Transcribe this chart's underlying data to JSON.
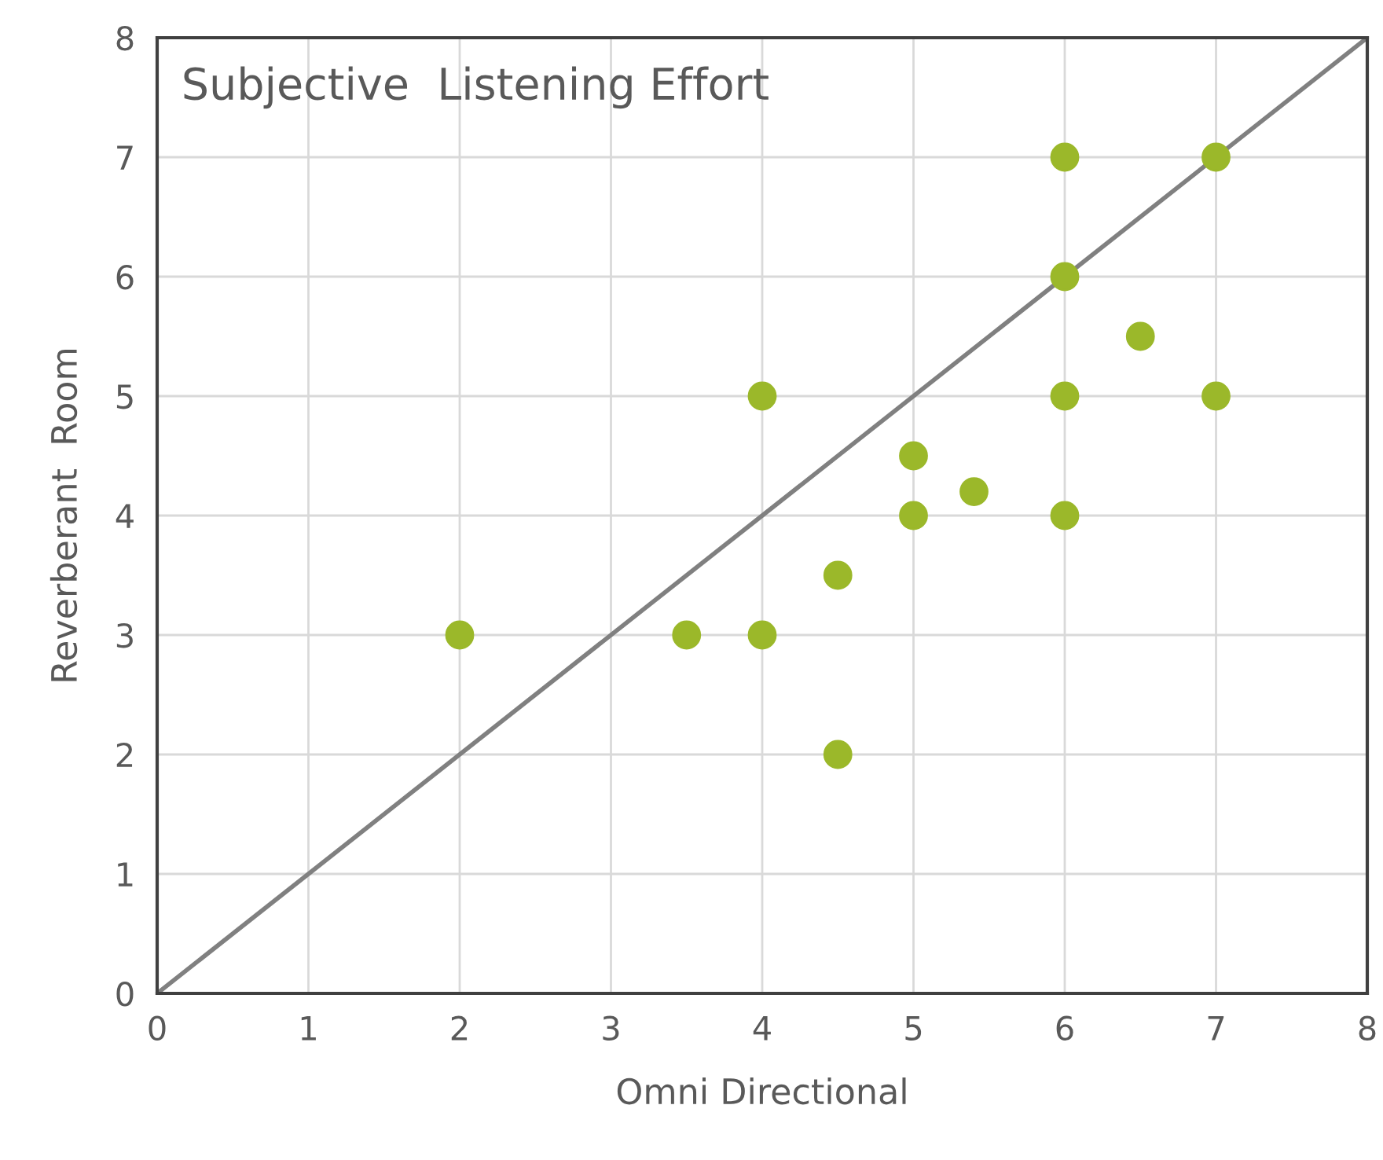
{
  "chart_data": {
    "type": "scatter",
    "title": "Subjective  Listening Effort",
    "xlabel": "Omni Directional",
    "ylabel": "Reverberant  Room",
    "xlim": [
      0,
      8
    ],
    "ylim": [
      0,
      8
    ],
    "xticks": [
      0,
      1,
      2,
      3,
      4,
      5,
      6,
      7,
      8
    ],
    "yticks": [
      0,
      1,
      2,
      3,
      4,
      5,
      6,
      7,
      8
    ],
    "grid": true,
    "marker": "circle",
    "series": [
      {
        "color": "#9bb82a",
        "x": [
          2,
          3.5,
          4,
          4,
          4.5,
          4.5,
          5,
          5,
          5.4,
          6,
          6,
          6,
          6,
          6.5,
          7,
          7
        ],
        "values": [
          3,
          3,
          3,
          5,
          3.5,
          2,
          4.5,
          4,
          4.2,
          7,
          6,
          5,
          4,
          5.5,
          7,
          5
        ]
      },
      {
        "type": "line",
        "color": "#808080",
        "marker": "none",
        "x": [
          0,
          8
        ],
        "values": [
          0,
          8
        ]
      }
    ]
  }
}
